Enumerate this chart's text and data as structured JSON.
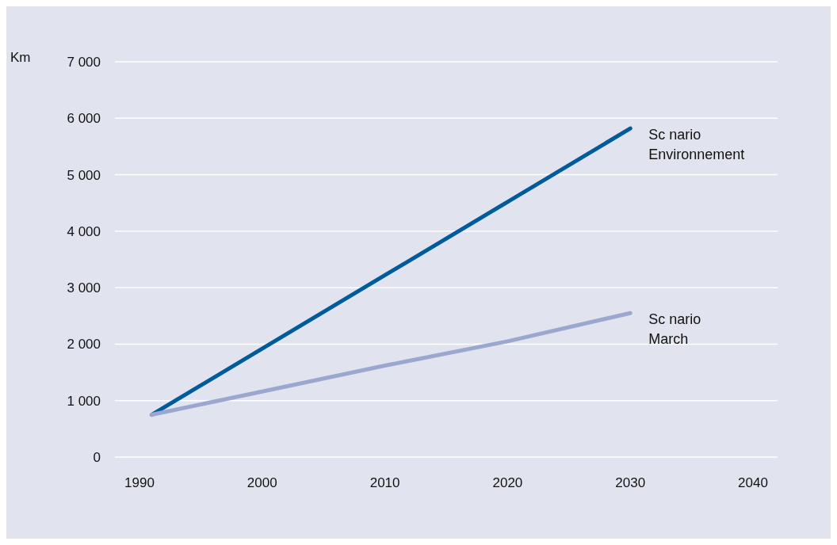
{
  "chart_data": {
    "type": "line",
    "ylabel": "Km",
    "series": [
      {
        "name": "Sc nario Environnement",
        "color": "#005b9a",
        "x": [
          1991,
          2000,
          2010,
          2020,
          2030
        ],
        "values": [
          750,
          1920,
          3220,
          4520,
          5820
        ]
      },
      {
        "name": "Sc nario March",
        "color": "#9ba7ce",
        "x": [
          1991,
          2000,
          2010,
          2020,
          2030
        ],
        "values": [
          750,
          1160,
          1620,
          2050,
          2550
        ]
      }
    ],
    "xlim": [
      1988,
      2042
    ],
    "xticks": [
      1990,
      2000,
      2010,
      2020,
      2030,
      2040
    ],
    "ylim": [
      0,
      7000
    ],
    "yticks": [
      0,
      {
        "value": 1000,
        "label": "1 000"
      },
      {
        "value": 2000,
        "label": "2 000"
      },
      {
        "value": 3000,
        "label": "3 000"
      },
      {
        "value": 4000,
        "label": "4 000"
      },
      {
        "value": 5000,
        "label": "5 000"
      },
      {
        "value": 6000,
        "label": "6 000"
      },
      {
        "value": 7000,
        "label": "7 000"
      }
    ],
    "grid": "y",
    "legend": false,
    "marker": "none",
    "line_style": "solid"
  }
}
